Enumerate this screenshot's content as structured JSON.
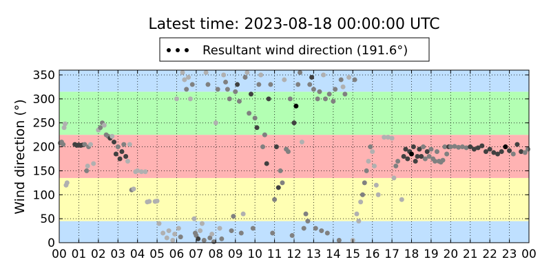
{
  "chart_data": {
    "type": "scatter",
    "title": "Latest time: 2023-08-18 00:00:00 UTC",
    "xlabel": "",
    "ylabel": "Wind direction (°)",
    "xlim": [
      0,
      24
    ],
    "ylim": [
      0,
      360
    ],
    "x_ticks": [
      "00",
      "01",
      "02",
      "03",
      "04",
      "05",
      "06",
      "07",
      "08",
      "09",
      "10",
      "11",
      "12",
      "13",
      "14",
      "15",
      "16",
      "17",
      "18",
      "19",
      "20",
      "21",
      "22",
      "23",
      "00"
    ],
    "y_ticks": [
      0,
      50,
      100,
      150,
      200,
      250,
      300,
      350
    ],
    "grid": true,
    "legend": {
      "label": "Resultant wind direction (191.6°)",
      "placement": "top-center"
    },
    "bands": [
      {
        "from": 0,
        "to": 45,
        "color": "#bfe0ff"
      },
      {
        "from": 45,
        "to": 135,
        "color": "#ffffb3"
      },
      {
        "from": 135,
        "to": 225,
        "color": "#ffb3b3"
      },
      {
        "from": 225,
        "to": 315,
        "color": "#b3ffb3"
      },
      {
        "from": 315,
        "to": 360,
        "color": "#bfe0ff"
      }
    ],
    "colors": {
      "point_light": "#b0b0b0",
      "point_mid": "#808080",
      "point_dark": "#404040",
      "point_black": "#000000"
    },
    "points": [
      [
        0.05,
        208,
        1
      ],
      [
        0.12,
        210,
        1
      ],
      [
        0.2,
        205,
        1
      ],
      [
        0.25,
        240,
        0
      ],
      [
        0.3,
        248,
        0
      ],
      [
        0.35,
        120,
        0
      ],
      [
        0.4,
        125,
        0
      ],
      [
        0.8,
        205,
        2
      ],
      [
        0.9,
        203,
        2
      ],
      [
        1.0,
        204,
        2
      ],
      [
        1.1,
        203,
        2
      ],
      [
        1.2,
        204,
        2
      ],
      [
        1.3,
        205,
        1
      ],
      [
        1.4,
        150,
        1
      ],
      [
        1.45,
        160,
        0
      ],
      [
        1.5,
        200,
        1
      ],
      [
        1.6,
        205,
        0
      ],
      [
        1.75,
        165,
        0
      ],
      [
        2.0,
        235,
        0
      ],
      [
        2.1,
        240,
        1
      ],
      [
        2.2,
        250,
        1
      ],
      [
        2.3,
        245,
        0
      ],
      [
        2.4,
        225,
        1
      ],
      [
        2.5,
        222,
        1
      ],
      [
        2.6,
        218,
        2
      ],
      [
        2.7,
        222,
        0
      ],
      [
        2.8,
        210,
        2
      ],
      [
        2.9,
        185,
        2
      ],
      [
        3.0,
        200,
        1
      ],
      [
        3.1,
        175,
        2
      ],
      [
        3.2,
        190,
        2
      ],
      [
        3.3,
        205,
        1
      ],
      [
        3.4,
        180,
        2
      ],
      [
        3.5,
        170,
        0
      ],
      [
        3.6,
        205,
        0
      ],
      [
        3.7,
        110,
        1
      ],
      [
        3.8,
        112,
        0
      ],
      [
        3.9,
        148,
        0
      ],
      [
        4.0,
        150,
        0
      ],
      [
        4.2,
        148,
        0
      ],
      [
        4.4,
        148,
        0
      ],
      [
        4.5,
        85,
        0
      ],
      [
        4.6,
        86,
        0
      ],
      [
        4.9,
        86,
        0
      ],
      [
        5.0,
        87,
        0
      ],
      [
        5.1,
        40,
        0
      ],
      [
        5.3,
        20,
        0
      ],
      [
        5.5,
        10,
        0
      ],
      [
        5.6,
        25,
        0
      ],
      [
        5.8,
        5,
        0
      ],
      [
        5.9,
        18,
        0
      ],
      [
        6.0,
        300,
        0
      ],
      [
        6.1,
        30,
        0
      ],
      [
        6.2,
        12,
        1
      ],
      [
        6.3,
        355,
        0
      ],
      [
        6.4,
        340,
        0
      ],
      [
        6.5,
        320,
        1
      ],
      [
        6.6,
        345,
        0
      ],
      [
        6.7,
        300,
        0
      ],
      [
        6.8,
        330,
        1
      ],
      [
        6.9,
        50,
        0
      ],
      [
        6.95,
        20,
        1
      ],
      [
        7.0,
        15,
        1
      ],
      [
        7.1,
        8,
        2
      ],
      [
        7.2,
        25,
        0
      ],
      [
        7.3,
        40,
        0
      ],
      [
        7.4,
        5,
        1
      ],
      [
        7.5,
        355,
        0
      ],
      [
        7.6,
        330,
        1
      ],
      [
        7.7,
        10,
        1
      ],
      [
        7.8,
        18,
        0
      ],
      [
        7.9,
        2,
        1
      ],
      [
        8.0,
        250,
        0
      ],
      [
        8.1,
        320,
        1
      ],
      [
        8.2,
        30,
        0
      ],
      [
        8.3,
        8,
        1
      ],
      [
        8.4,
        350,
        0
      ],
      [
        8.5,
        335,
        1
      ],
      [
        8.6,
        320,
        1
      ],
      [
        8.7,
        300,
        1
      ],
      [
        8.8,
        25,
        1
      ],
      [
        8.9,
        55,
        1
      ],
      [
        9.0,
        315,
        1
      ],
      [
        9.1,
        330,
        2
      ],
      [
        9.2,
        295,
        1
      ],
      [
        9.3,
        20,
        1
      ],
      [
        9.4,
        60,
        0
      ],
      [
        9.5,
        345,
        1
      ],
      [
        9.6,
        355,
        0
      ],
      [
        9.7,
        270,
        1
      ],
      [
        9.8,
        310,
        2
      ],
      [
        9.9,
        30,
        1
      ],
      [
        10.0,
        260,
        1
      ],
      [
        10.1,
        240,
        2
      ],
      [
        10.2,
        330,
        1
      ],
      [
        10.3,
        350,
        0
      ],
      [
        10.4,
        200,
        1
      ],
      [
        10.5,
        225,
        1
      ],
      [
        10.6,
        165,
        2
      ],
      [
        10.7,
        300,
        2
      ],
      [
        10.8,
        330,
        1
      ],
      [
        10.9,
        20,
        1
      ],
      [
        11.0,
        90,
        1
      ],
      [
        11.1,
        200,
        2
      ],
      [
        11.2,
        115,
        2
      ],
      [
        11.3,
        150,
        1
      ],
      [
        11.4,
        125,
        1
      ],
      [
        11.5,
        340,
        0
      ],
      [
        11.6,
        195,
        1
      ],
      [
        11.7,
        190,
        1
      ],
      [
        11.8,
        300,
        1
      ],
      [
        11.9,
        15,
        1
      ],
      [
        12.0,
        250,
        2
      ],
      [
        12.1,
        285,
        3
      ],
      [
        12.2,
        330,
        1
      ],
      [
        12.3,
        355,
        1
      ],
      [
        12.4,
        210,
        0
      ],
      [
        12.5,
        30,
        1
      ],
      [
        12.6,
        60,
        1
      ],
      [
        12.7,
        45,
        1
      ],
      [
        12.8,
        330,
        1
      ],
      [
        12.9,
        345,
        2
      ],
      [
        13.0,
        320,
        1
      ],
      [
        13.1,
        30,
        1
      ],
      [
        13.2,
        300,
        1
      ],
      [
        13.3,
        315,
        1
      ],
      [
        13.4,
        25,
        1
      ],
      [
        13.5,
        350,
        0
      ],
      [
        13.6,
        300,
        1
      ],
      [
        13.7,
        20,
        1
      ],
      [
        13.8,
        310,
        1
      ],
      [
        14.0,
        295,
        1
      ],
      [
        14.1,
        320,
        1
      ],
      [
        14.3,
        5,
        1
      ],
      [
        14.4,
        340,
        1
      ],
      [
        14.5,
        325,
        0
      ],
      [
        14.6,
        310,
        1
      ],
      [
        14.8,
        345,
        0
      ],
      [
        15.0,
        5,
        0
      ],
      [
        15.1,
        340,
        1
      ],
      [
        15.2,
        60,
        0
      ],
      [
        15.3,
        45,
        0
      ],
      [
        15.4,
        85,
        0
      ],
      [
        15.5,
        100,
        1
      ],
      [
        15.6,
        125,
        1
      ],
      [
        15.7,
        150,
        1
      ],
      [
        15.8,
        170,
        0
      ],
      [
        15.9,
        200,
        1
      ],
      [
        16.0,
        190,
        0
      ],
      [
        16.1,
        160,
        0
      ],
      [
        16.2,
        120,
        0
      ],
      [
        16.3,
        100,
        0
      ],
      [
        16.6,
        220,
        0
      ],
      [
        16.8,
        220,
        0
      ],
      [
        17.0,
        218,
        0
      ],
      [
        17.1,
        135,
        0
      ],
      [
        17.2,
        160,
        1
      ],
      [
        17.3,
        170,
        1
      ],
      [
        17.5,
        90,
        0
      ],
      [
        17.6,
        180,
        2
      ],
      [
        17.7,
        195,
        2
      ],
      [
        17.8,
        175,
        2
      ],
      [
        17.9,
        190,
        2
      ],
      [
        18.0,
        185,
        3
      ],
      [
        18.1,
        200,
        2
      ],
      [
        18.2,
        170,
        2
      ],
      [
        18.3,
        180,
        2
      ],
      [
        18.4,
        195,
        2
      ],
      [
        18.5,
        180,
        2
      ],
      [
        18.6,
        200,
        1
      ],
      [
        18.7,
        175,
        1
      ],
      [
        18.8,
        190,
        2
      ],
      [
        18.9,
        180,
        1
      ],
      [
        19.0,
        195,
        1
      ],
      [
        19.1,
        175,
        1
      ],
      [
        19.2,
        170,
        1
      ],
      [
        19.3,
        190,
        1
      ],
      [
        19.4,
        170,
        1
      ],
      [
        19.5,
        168,
        1
      ],
      [
        19.6,
        172,
        1
      ],
      [
        19.7,
        200,
        1
      ],
      [
        19.8,
        185,
        1
      ],
      [
        19.9,
        200,
        2
      ],
      [
        20.0,
        200,
        1
      ],
      [
        20.2,
        201,
        1
      ],
      [
        20.4,
        199,
        1
      ],
      [
        20.6,
        200,
        1
      ],
      [
        20.8,
        198,
        1
      ],
      [
        21.0,
        200,
        2
      ],
      [
        21.2,
        195,
        2
      ],
      [
        21.4,
        198,
        2
      ],
      [
        21.6,
        202,
        2
      ],
      [
        21.8,
        190,
        2
      ],
      [
        22.0,
        195,
        2
      ],
      [
        22.2,
        188,
        2
      ],
      [
        22.4,
        185,
        2
      ],
      [
        22.6,
        190,
        2
      ],
      [
        22.8,
        200,
        3
      ],
      [
        23.0,
        192,
        2
      ],
      [
        23.2,
        185,
        1
      ],
      [
        23.4,
        205,
        2
      ],
      [
        23.6,
        190,
        2
      ],
      [
        23.8,
        188,
        1
      ],
      [
        23.95,
        195,
        1
      ]
    ]
  }
}
